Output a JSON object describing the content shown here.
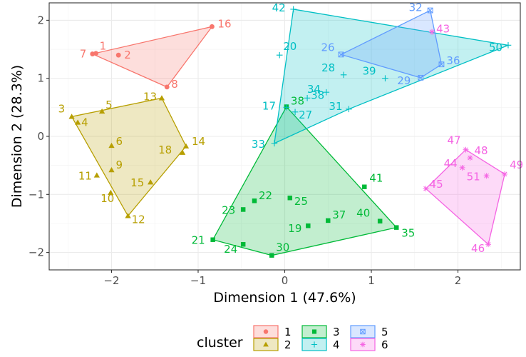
{
  "chart_data": {
    "type": "scatter",
    "title": "",
    "xlabel": "Dimension 1 (47.6%)",
    "ylabel": "Dimension 2 (28.3%)",
    "xlim": [
      -2.72,
      2.72
    ],
    "ylim": [
      -2.3,
      2.3
    ],
    "xticks": [
      -2,
      -1,
      0,
      1,
      2
    ],
    "yticks": [
      -2,
      -1,
      0,
      1,
      2
    ],
    "xtick_labels": [
      "−2",
      "−1",
      "0",
      "1",
      "2"
    ],
    "ytick_labels": [
      "−2",
      "−1",
      "0",
      "1",
      "2"
    ],
    "grid": true,
    "legend": {
      "title": "cluster",
      "position": "bottom"
    },
    "series": [
      {
        "name": "1",
        "color": "#F8766D",
        "marker": "circle",
        "hull": [
          16,
          8,
          7
        ],
        "points": [
          {
            "id": 1,
            "x": -2.18,
            "y": 1.43
          },
          {
            "id": 2,
            "x": -1.92,
            "y": 1.4
          },
          {
            "id": 7,
            "x": -2.22,
            "y": 1.42
          },
          {
            "id": 8,
            "x": -1.36,
            "y": 0.85
          },
          {
            "id": 16,
            "x": -0.84,
            "y": 1.89
          }
        ]
      },
      {
        "name": "2",
        "color": "#B79F00",
        "marker": "triangle",
        "hull": [
          3,
          12,
          14,
          13
        ],
        "points": [
          {
            "id": 3,
            "x": -2.46,
            "y": 0.34
          },
          {
            "id": 4,
            "x": -2.39,
            "y": 0.24
          },
          {
            "id": 5,
            "x": -2.11,
            "y": 0.43
          },
          {
            "id": 6,
            "x": -2.0,
            "y": -0.16
          },
          {
            "id": 9,
            "x": -2.0,
            "y": -0.58
          },
          {
            "id": 10,
            "x": -2.01,
            "y": -0.97
          },
          {
            "id": 11,
            "x": -2.17,
            "y": -0.67
          },
          {
            "id": 12,
            "x": -1.81,
            "y": -1.37
          },
          {
            "id": 13,
            "x": -1.42,
            "y": 0.66
          },
          {
            "id": 14,
            "x": -1.14,
            "y": -0.17
          },
          {
            "id": 15,
            "x": -1.55,
            "y": -0.79
          },
          {
            "id": 18,
            "x": -1.18,
            "y": -0.28
          }
        ]
      },
      {
        "name": "3",
        "color": "#00BA38",
        "marker": "square",
        "hull": [
          38,
          35,
          30,
          21
        ],
        "points": [
          {
            "id": 19,
            "x": 0.27,
            "y": -1.54
          },
          {
            "id": 21,
            "x": -0.83,
            "y": -1.78
          },
          {
            "id": 22,
            "x": -0.35,
            "y": -1.11
          },
          {
            "id": 23,
            "x": -0.48,
            "y": -1.26
          },
          {
            "id": 24,
            "x": -0.48,
            "y": -1.86
          },
          {
            "id": 25,
            "x": 0.06,
            "y": -1.06
          },
          {
            "id": 30,
            "x": -0.15,
            "y": -2.05
          },
          {
            "id": 35,
            "x": 1.29,
            "y": -1.57
          },
          {
            "id": 37,
            "x": 0.5,
            "y": -1.45
          },
          {
            "id": 38,
            "x": 0.02,
            "y": 0.51
          },
          {
            "id": 40,
            "x": 1.1,
            "y": -1.46
          },
          {
            "id": 41,
            "x": 0.92,
            "y": -0.87
          }
        ]
      },
      {
        "name": "4",
        "color": "#00BFC4",
        "marker": "plus",
        "hull": [
          42,
          50,
          31,
          33
        ],
        "points": [
          {
            "id": 17,
            "x": 0.02,
            "y": 0.5
          },
          {
            "id": 20,
            "x": -0.06,
            "y": 1.4
          },
          {
            "id": 27,
            "x": 0.12,
            "y": 0.42
          },
          {
            "id": 28,
            "x": 0.68,
            "y": 1.06
          },
          {
            "id": 31,
            "x": 0.74,
            "y": 0.47
          },
          {
            "id": 33,
            "x": -0.12,
            "y": -0.12
          },
          {
            "id": 34,
            "x": 0.48,
            "y": 0.76
          },
          {
            "id": 38,
            "x": 0.26,
            "y": 0.66
          },
          {
            "id": 39,
            "x": 1.16,
            "y": 1.0
          },
          {
            "id": 42,
            "x": 0.1,
            "y": 2.19
          },
          {
            "id": 50,
            "x": 2.58,
            "y": 1.57
          }
        ]
      },
      {
        "name": "5",
        "color": "#619CFF",
        "marker": "square-x",
        "hull": [
          32,
          36,
          29,
          26
        ],
        "points": [
          {
            "id": 26,
            "x": 0.65,
            "y": 1.41
          },
          {
            "id": 29,
            "x": 1.57,
            "y": 1.01
          },
          {
            "id": 32,
            "x": 1.68,
            "y": 2.17
          },
          {
            "id": 36,
            "x": 1.81,
            "y": 1.24
          }
        ]
      },
      {
        "name": "6",
        "color": "#F564E3",
        "marker": "asterisk",
        "hull": [
          47,
          49,
          46,
          45
        ],
        "points": [
          {
            "id": 43,
            "x": 1.7,
            "y": 1.8
          },
          {
            "id": 44,
            "x": 2.05,
            "y": -0.54
          },
          {
            "id": 45,
            "x": 1.63,
            "y": -0.9
          },
          {
            "id": 46,
            "x": 2.35,
            "y": -1.86
          },
          {
            "id": 47,
            "x": 2.09,
            "y": -0.23
          },
          {
            "id": 48,
            "x": 2.14,
            "y": -0.37
          },
          {
            "id": 49,
            "x": 2.54,
            "y": -0.65
          },
          {
            "id": 51,
            "x": 2.33,
            "y": -0.68
          }
        ]
      }
    ]
  }
}
